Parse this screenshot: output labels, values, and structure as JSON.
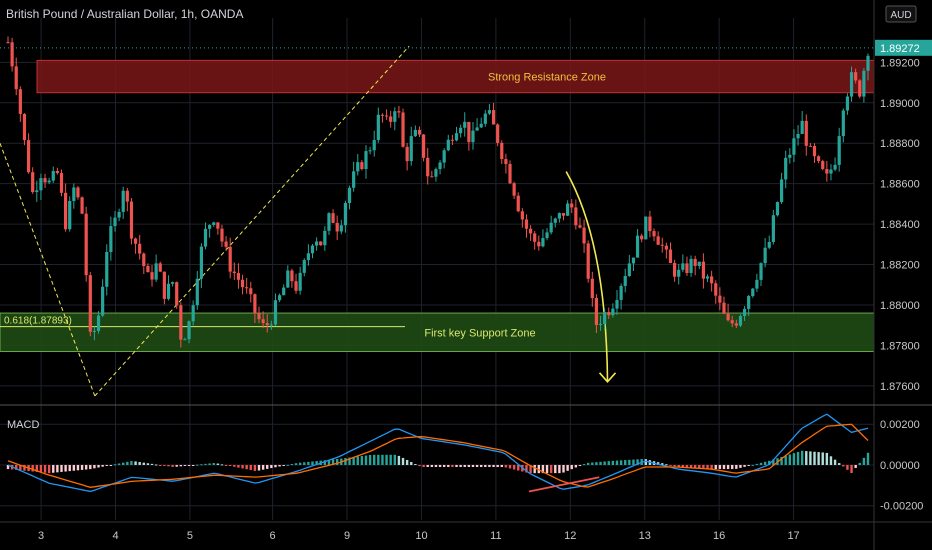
{
  "header": {
    "title": "British Pound / Australian Dollar, 1h, OANDA"
  },
  "axis_badge": "AUD",
  "current_price_label": "1.89272",
  "macd_label": "MACD",
  "colors": {
    "bull": "#26a69a",
    "bear": "#ef5350",
    "resistance_fill": "#7a1818",
    "support_fill": "#1f4a14",
    "annotation": "#f2e94e",
    "macd_line": "#2196f3",
    "signal_line": "#ff6d00",
    "current_price": "#26a69a"
  },
  "chart_data": [
    {
      "type": "candlestick",
      "title": "British Pound / Australian Dollar, 1h, OANDA",
      "y_ticks": [
        "1.89200",
        "1.89000",
        "1.88800",
        "1.88600",
        "1.88400",
        "1.88200",
        "1.88000",
        "1.87800",
        "1.87600"
      ],
      "y_range": [
        1.8753,
        1.8937
      ],
      "x_ticks": [
        "3",
        "4",
        "5",
        "6",
        "9",
        "10",
        "11",
        "12",
        "13",
        "16",
        "17"
      ],
      "zones": [
        {
          "label": "Strong Resistance Zone",
          "from": 1.8905,
          "to": 1.8921
        },
        {
          "label": "First key Support Zone",
          "from": 1.8777,
          "to": 1.8796
        }
      ],
      "fib_label": "0.618(1.87893)",
      "fib_value": 1.87893,
      "current_price": 1.89272,
      "close_path": [
        [
          0,
          1.893
        ],
        [
          1,
          1.891
        ],
        [
          2,
          1.888
        ],
        [
          3,
          1.8855
        ],
        [
          4,
          1.8866
        ],
        [
          5,
          1.886
        ],
        [
          6,
          1.8865
        ],
        [
          7,
          1.884
        ],
        [
          8,
          1.8858
        ],
        [
          9,
          1.8845
        ],
        [
          10,
          1.878
        ],
        [
          11,
          1.8796
        ],
        [
          12,
          1.883
        ],
        [
          13,
          1.8842
        ],
        [
          14,
          1.886
        ],
        [
          15,
          1.8835
        ],
        [
          16,
          1.8825
        ],
        [
          17,
          1.8812
        ],
        [
          18,
          1.882
        ],
        [
          19,
          1.8805
        ],
        [
          20,
          1.8812
        ],
        [
          21,
          1.8782
        ],
        [
          22,
          1.8792
        ],
        [
          23,
          1.882
        ],
        [
          24,
          1.8838
        ],
        [
          25,
          1.8845
        ],
        [
          26,
          1.883
        ],
        [
          27,
          1.8818
        ],
        [
          28,
          1.8812
        ],
        [
          29,
          1.8805
        ],
        [
          30,
          1.8795
        ],
        [
          31,
          1.8788
        ],
        [
          32,
          1.8795
        ],
        [
          33,
          1.8805
        ],
        [
          34,
          1.8815
        ],
        [
          35,
          1.8808
        ],
        [
          36,
          1.8822
        ],
        [
          37,
          1.8835
        ],
        [
          38,
          1.883
        ],
        [
          39,
          1.8845
        ],
        [
          40,
          1.8838
        ],
        [
          41,
          1.8855
        ],
        [
          42,
          1.8865
        ],
        [
          43,
          1.8872
        ],
        [
          44,
          1.888
        ],
        [
          45,
          1.8895
        ],
        [
          46,
          1.8888
        ],
        [
          47,
          1.8902
        ],
        [
          48,
          1.887
        ],
        [
          49,
          1.8885
        ],
        [
          50,
          1.888
        ],
        [
          51,
          1.886
        ],
        [
          52,
          1.887
        ],
        [
          53,
          1.8878
        ],
        [
          54,
          1.8888
        ],
        [
          55,
          1.8892
        ],
        [
          56,
          1.888
        ],
        [
          57,
          1.889
        ],
        [
          58,
          1.8895
        ],
        [
          59,
          1.8885
        ],
        [
          60,
          1.8872
        ],
        [
          61,
          1.886
        ],
        [
          62,
          1.8845
        ],
        [
          63,
          1.8835
        ],
        [
          64,
          1.883
        ],
        [
          65,
          1.8835
        ],
        [
          66,
          1.884
        ],
        [
          67,
          1.8845
        ],
        [
          68,
          1.885
        ],
        [
          69,
          1.884
        ],
        [
          70,
          1.882
        ],
        [
          71,
          1.879
        ],
        [
          72,
          1.8795
        ],
        [
          73,
          1.88
        ],
        [
          74,
          1.881
        ],
        [
          75,
          1.882
        ],
        [
          76,
          1.883
        ],
        [
          77,
          1.884
        ],
        [
          78,
          1.8838
        ],
        [
          79,
          1.883
        ],
        [
          80,
          1.882
        ],
        [
          81,
          1.8815
        ],
        [
          82,
          1.8818
        ],
        [
          83,
          1.8822
        ],
        [
          84,
          1.8815
        ],
        [
          85,
          1.881
        ],
        [
          86,
          1.88
        ],
        [
          87,
          1.879
        ],
        [
          88,
          1.8792
        ],
        [
          89,
          1.88
        ],
        [
          90,
          1.881
        ],
        [
          91,
          1.882
        ],
        [
          92,
          1.883
        ],
        [
          93,
          1.885
        ],
        [
          94,
          1.887
        ],
        [
          95,
          1.888
        ],
        [
          96,
          1.889
        ],
        [
          97,
          1.8875
        ],
        [
          98,
          1.8868
        ],
        [
          99,
          1.8862
        ],
        [
          100,
          1.8872
        ],
        [
          101,
          1.89
        ],
        [
          102,
          1.8912
        ],
        [
          103,
          1.8906
        ],
        [
          104,
          1.89272
        ]
      ]
    },
    {
      "type": "macd",
      "title": "MACD",
      "y_ticks": [
        "0.00200",
        "0.00000",
        "-0.00200"
      ],
      "y_range": [
        -0.0027,
        0.0026
      ],
      "macd": [
        [
          0,
          0.0
        ],
        [
          5,
          -0.0009
        ],
        [
          10,
          -0.0013
        ],
        [
          15,
          -0.0006
        ],
        [
          20,
          -0.0008
        ],
        [
          25,
          -0.0004
        ],
        [
          30,
          -0.0009
        ],
        [
          35,
          -0.0003
        ],
        [
          40,
          0.0004
        ],
        [
          44,
          0.0012
        ],
        [
          47,
          0.0018
        ],
        [
          50,
          0.0013
        ],
        [
          55,
          0.001
        ],
        [
          60,
          0.0006
        ],
        [
          63,
          -0.0004
        ],
        [
          67,
          -0.0012
        ],
        [
          70,
          -0.001
        ],
        [
          73,
          -0.0005
        ],
        [
          77,
          0.0002
        ],
        [
          81,
          -0.0002
        ],
        [
          85,
          -0.0004
        ],
        [
          88,
          -0.0006
        ],
        [
          92,
          0.0
        ],
        [
          96,
          0.0018
        ],
        [
          99,
          0.0025
        ],
        [
          102,
          0.0016
        ],
        [
          104,
          0.0018
        ]
      ],
      "signal": [
        [
          0,
          0.0002
        ],
        [
          5,
          -0.0005
        ],
        [
          10,
          -0.0011
        ],
        [
          15,
          -0.0008
        ],
        [
          20,
          -0.0007
        ],
        [
          25,
          -0.0005
        ],
        [
          30,
          -0.0006
        ],
        [
          35,
          -0.0004
        ],
        [
          40,
          0.0001
        ],
        [
          44,
          0.0007
        ],
        [
          47,
          0.0013
        ],
        [
          50,
          0.0014
        ],
        [
          55,
          0.0011
        ],
        [
          60,
          0.0007
        ],
        [
          63,
          0.0
        ],
        [
          67,
          -0.0008
        ],
        [
          70,
          -0.0011
        ],
        [
          73,
          -0.0007
        ],
        [
          77,
          -0.0001
        ],
        [
          81,
          -0.0001
        ],
        [
          85,
          -0.0002
        ],
        [
          88,
          -0.0004
        ],
        [
          92,
          -0.0002
        ],
        [
          96,
          0.0011
        ],
        [
          99,
          0.0019
        ],
        [
          102,
          0.002
        ],
        [
          104,
          0.0012
        ]
      ]
    }
  ]
}
